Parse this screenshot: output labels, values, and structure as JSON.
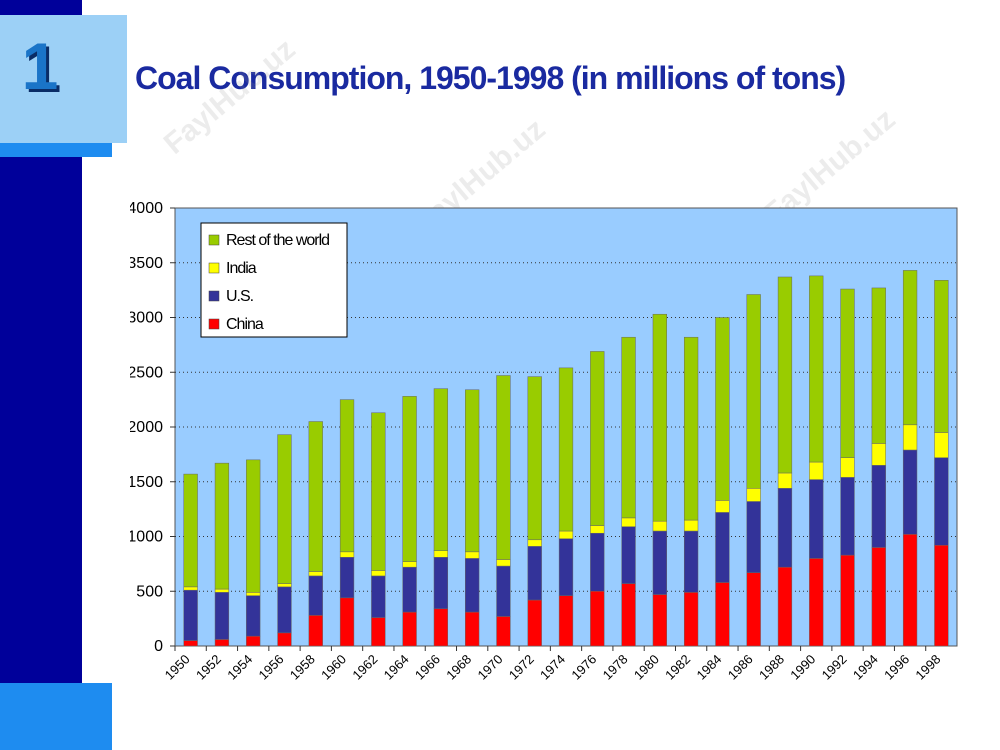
{
  "slide": {
    "number": "1",
    "title": "Coal Consumption, 1950-1998 (in millions of tons)",
    "watermark": "FaylHub.uz"
  },
  "colors": {
    "plot_bg": "#99ccff",
    "china": "#ff0000",
    "us": "#333399",
    "india": "#ffff00",
    "rest": "#99cc00",
    "accent_dark": "#00009a",
    "accent_light": "#1e8cf0"
  },
  "chart_data": {
    "type": "bar",
    "stacked": true,
    "title": "",
    "xlabel": "",
    "ylabel": "",
    "ylim": [
      0,
      4000
    ],
    "yticks": [
      0,
      500,
      1000,
      1500,
      2000,
      2500,
      3000,
      3500,
      4000
    ],
    "grid": "horizontal dotted",
    "legend_position": "top-left",
    "categories": [
      "1950",
      "1952",
      "1954",
      "1956",
      "1958",
      "1960",
      "1962",
      "1964",
      "1966",
      "1968",
      "1970",
      "1972",
      "1974",
      "1976",
      "1978",
      "1980",
      "1982",
      "1984",
      "1986",
      "1988",
      "1990",
      "1992",
      "1994",
      "1996",
      "1998"
    ],
    "series": [
      {
        "name": "China",
        "color": "#ff0000",
        "values": [
          50,
          60,
          90,
          120,
          280,
          440,
          260,
          310,
          340,
          310,
          270,
          420,
          460,
          500,
          570,
          470,
          490,
          580,
          670,
          720,
          800,
          830,
          900,
          1020,
          920
        ]
      },
      {
        "name": "U.S.",
        "color": "#333399",
        "values": [
          460,
          430,
          370,
          420,
          360,
          370,
          380,
          410,
          470,
          490,
          460,
          490,
          520,
          530,
          520,
          580,
          560,
          640,
          650,
          720,
          720,
          710,
          750,
          770,
          800
        ]
      },
      {
        "name": "India",
        "color": "#ffff00",
        "values": [
          30,
          30,
          30,
          30,
          40,
          50,
          50,
          50,
          60,
          60,
          60,
          60,
          70,
          70,
          80,
          90,
          100,
          110,
          120,
          140,
          160,
          180,
          200,
          230,
          230
        ]
      },
      {
        "name": "Rest of the world",
        "color": "#99cc00",
        "values": [
          1030,
          1150,
          1210,
          1360,
          1370,
          1390,
          1440,
          1510,
          1480,
          1480,
          1680,
          1490,
          1490,
          1590,
          1650,
          1890,
          1670,
          1670,
          1770,
          1790,
          1700,
          1540,
          1420,
          1410,
          1390
        ]
      }
    ],
    "legend_order": [
      "Rest of the world",
      "India",
      "U.S.",
      "China"
    ]
  }
}
